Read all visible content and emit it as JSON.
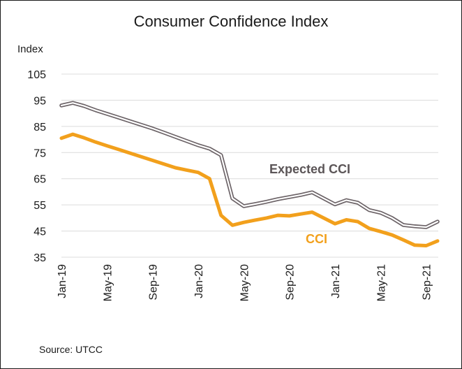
{
  "chart_data": {
    "type": "line",
    "title": "Consumer Confidence Index",
    "ylabel": "Index",
    "xlabel": "",
    "ylim": [
      35,
      105
    ],
    "yticks": [
      35,
      45,
      55,
      65,
      75,
      85,
      95,
      105
    ],
    "grid": true,
    "x_tick_labels": [
      "Jan-19",
      "May-19",
      "Sep-19",
      "Jan-20",
      "May-20",
      "Sep-20",
      "Jan-21",
      "May-21",
      "Sep-21"
    ],
    "x_tick_positions": [
      "Jan-19",
      "May-19",
      "Sep-19",
      "Jan-20",
      "May-20",
      "Sep-20",
      "Jan-21",
      "May-21",
      "Sep-21"
    ],
    "x": [
      "Jan-19",
      "Feb-19",
      "Mar-19",
      "Apr-19",
      "May-19",
      "Jun-19",
      "Jul-19",
      "Aug-19",
      "Sep-19",
      "Oct-19",
      "Nov-19",
      "Dec-19",
      "Jan-20",
      "Feb-20",
      "Mar-20",
      "Apr-20",
      "May-20",
      "Jun-20",
      "Jul-20",
      "Aug-20",
      "Sep-20",
      "Oct-20",
      "Nov-20",
      "Dec-20",
      "Jan-21",
      "Feb-21",
      "Mar-21",
      "Apr-21",
      "May-21",
      "Jun-21",
      "Jul-21",
      "Aug-21",
      "Sep-21",
      "Oct-21"
    ],
    "series": [
      {
        "name": "Expected CCI",
        "color": "#6b6266",
        "style": "outlined",
        "values": [
          93.0,
          94.0,
          92.8,
          91.2,
          89.8,
          88.4,
          87.0,
          85.6,
          84.2,
          82.6,
          81.0,
          79.4,
          77.8,
          76.5,
          74.0,
          57.5,
          54.5,
          55.3,
          56.2,
          57.2,
          58.0,
          58.8,
          59.8,
          57.5,
          55.2,
          56.8,
          55.8,
          53.0,
          52.0,
          50.0,
          47.3,
          46.8,
          46.5,
          48.6
        ]
      },
      {
        "name": "CCI",
        "color": "#f2a01c",
        "style": "solid",
        "values": [
          80.5,
          82.0,
          80.6,
          79.0,
          77.6,
          76.2,
          74.8,
          73.4,
          72.0,
          70.6,
          69.2,
          68.3,
          67.4,
          65.0,
          51.0,
          47.2,
          48.3,
          49.2,
          50.0,
          51.0,
          50.8,
          51.5,
          52.2,
          50.0,
          47.8,
          49.3,
          48.6,
          46.0,
          44.8,
          43.5,
          41.6,
          39.6,
          39.4,
          41.2
        ]
      }
    ]
  },
  "source_text": "Source:  UTCC"
}
